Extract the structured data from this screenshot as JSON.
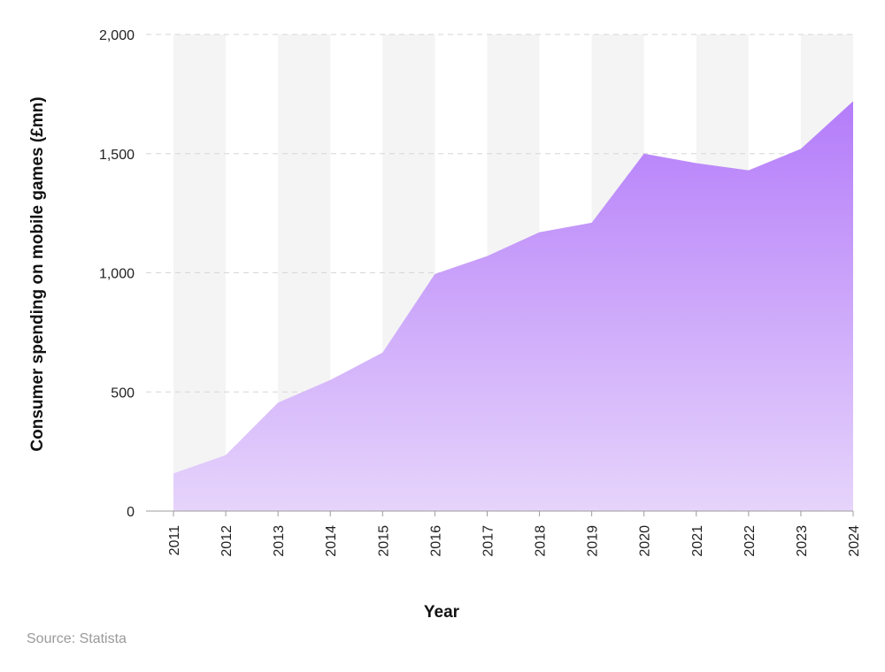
{
  "chart_data": {
    "type": "area",
    "x": [
      "2011",
      "2012",
      "2013",
      "2014",
      "2015",
      "2016",
      "2017",
      "2018",
      "2019",
      "2020",
      "2021",
      "2022",
      "2023",
      "2024"
    ],
    "values": [
      158,
      235,
      455,
      550,
      665,
      995,
      1070,
      1170,
      1210,
      1500,
      1460,
      1430,
      1520,
      1720
    ],
    "xlabel": "Year",
    "ylabel": "Consumer spending on mobile games (£mn)",
    "ylim": [
      0,
      2000
    ],
    "yticks": [
      0,
      500,
      1000,
      1500,
      2000
    ],
    "ytick_labels": [
      "0",
      "500",
      "1,000",
      "1,500",
      "2,000"
    ],
    "grid": "horizontal dashed",
    "background_bands": "alternating light grey columns",
    "fill_color_top": "#b47cfa",
    "fill_color_bottom": "#e6d4fb",
    "band_color": "#f4f4f4"
  },
  "source": "Source: Statista"
}
